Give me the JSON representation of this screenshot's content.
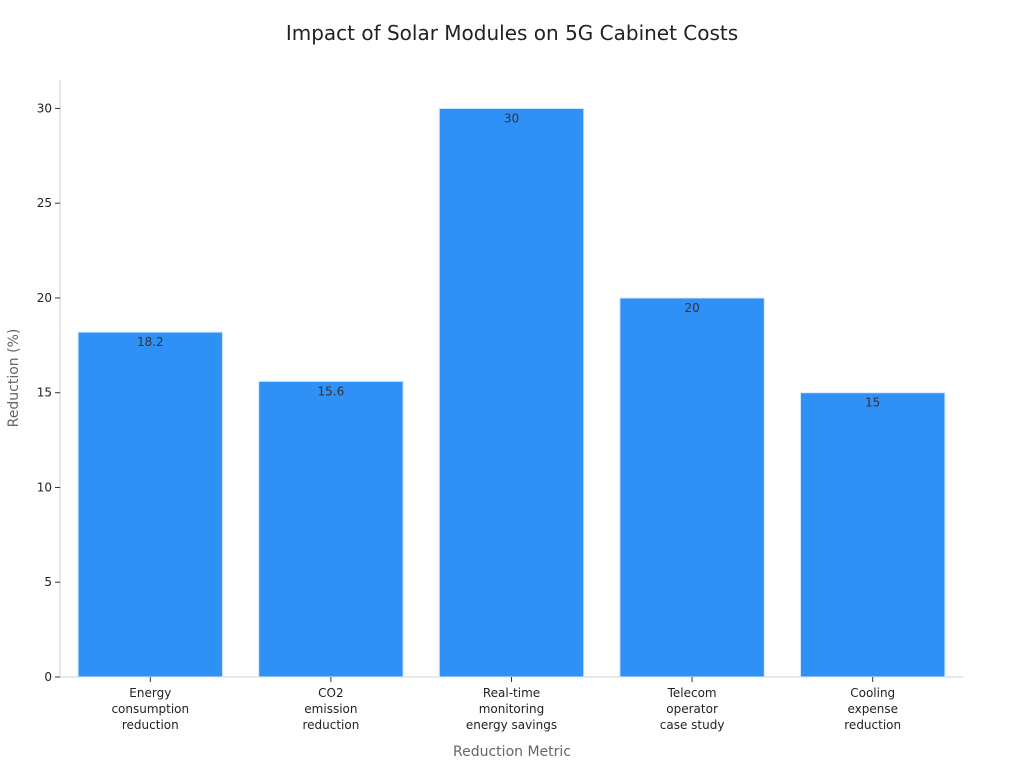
{
  "chart_data": {
    "type": "bar",
    "title": "Impact of Solar Modules on 5G Cabinet Costs",
    "xlabel": "Reduction Metric",
    "ylabel": "Reduction (%)",
    "categories": [
      [
        "Energy",
        "consumption",
        "reduction"
      ],
      [
        "CO2",
        "emission",
        "reduction"
      ],
      [
        "Real-time",
        "monitoring",
        "energy savings"
      ],
      [
        "Telecom",
        "operator",
        "case study"
      ],
      [
        "Cooling",
        "expense",
        "reduction"
      ]
    ],
    "values": [
      18.2,
      15.6,
      30,
      20,
      15
    ],
    "value_labels": [
      "18.2",
      "15.6",
      "30",
      "20",
      "15"
    ],
    "ylim": [
      0,
      31.5
    ],
    "y_ticks": [
      0,
      5,
      10,
      15,
      20,
      25,
      30
    ],
    "bar_color": "#2f91f6",
    "grid": false,
    "legend": "none"
  }
}
